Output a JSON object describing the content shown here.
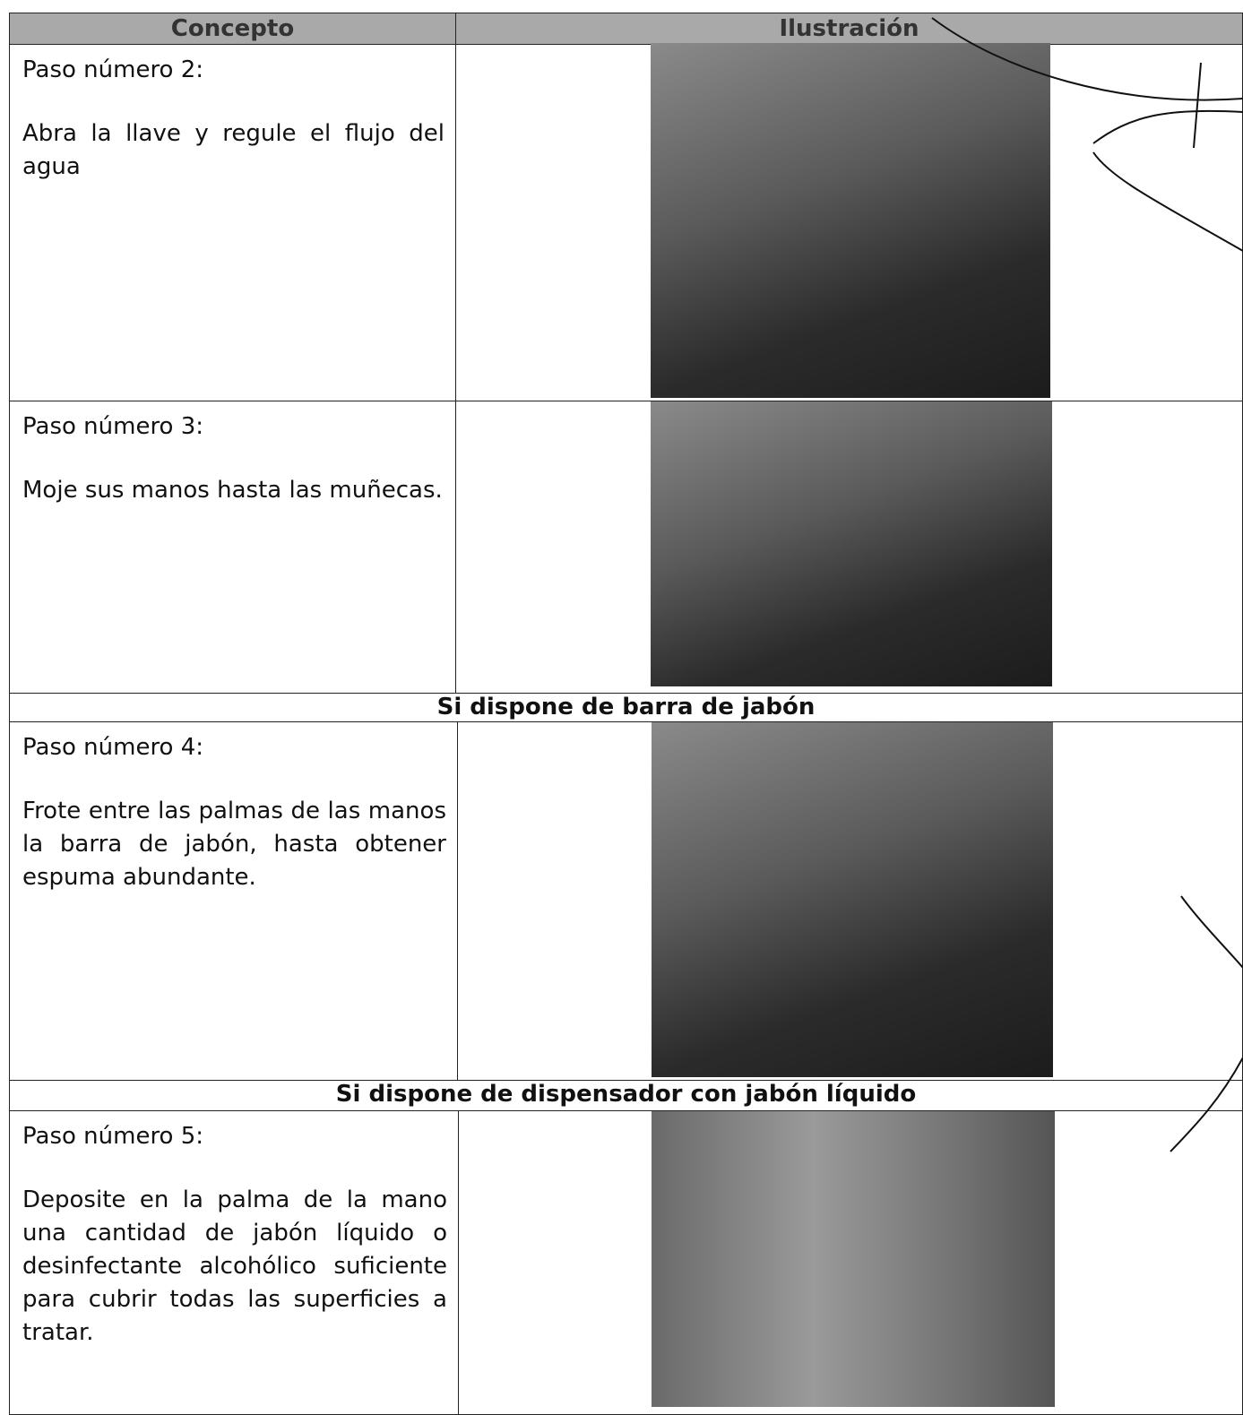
{
  "table": {
    "header": [
      "Concepto",
      "Ilustración"
    ],
    "rows": [
      {
        "step": "Paso número 2:",
        "text": "Abra la llave y regule el flujo del agua"
      },
      {
        "step": "Paso número 3:",
        "text": "Moje sus manos hasta las muñecas."
      },
      {
        "section": "Si dispone de barra de jabón"
      },
      {
        "step": "Paso número 4:",
        "text": "Frote entre las palmas de las manos la barra de jabón, hasta obtener espuma abundante."
      },
      {
        "section": "Si dispone de dispensador con jabón líquido"
      },
      {
        "step": "Paso número 5:",
        "text": "Deposite en la palma de la mano una cantidad de jabón líquido o desinfectante alcohólico suficiente para cubrir todas las superficies a tratar."
      }
    ]
  }
}
